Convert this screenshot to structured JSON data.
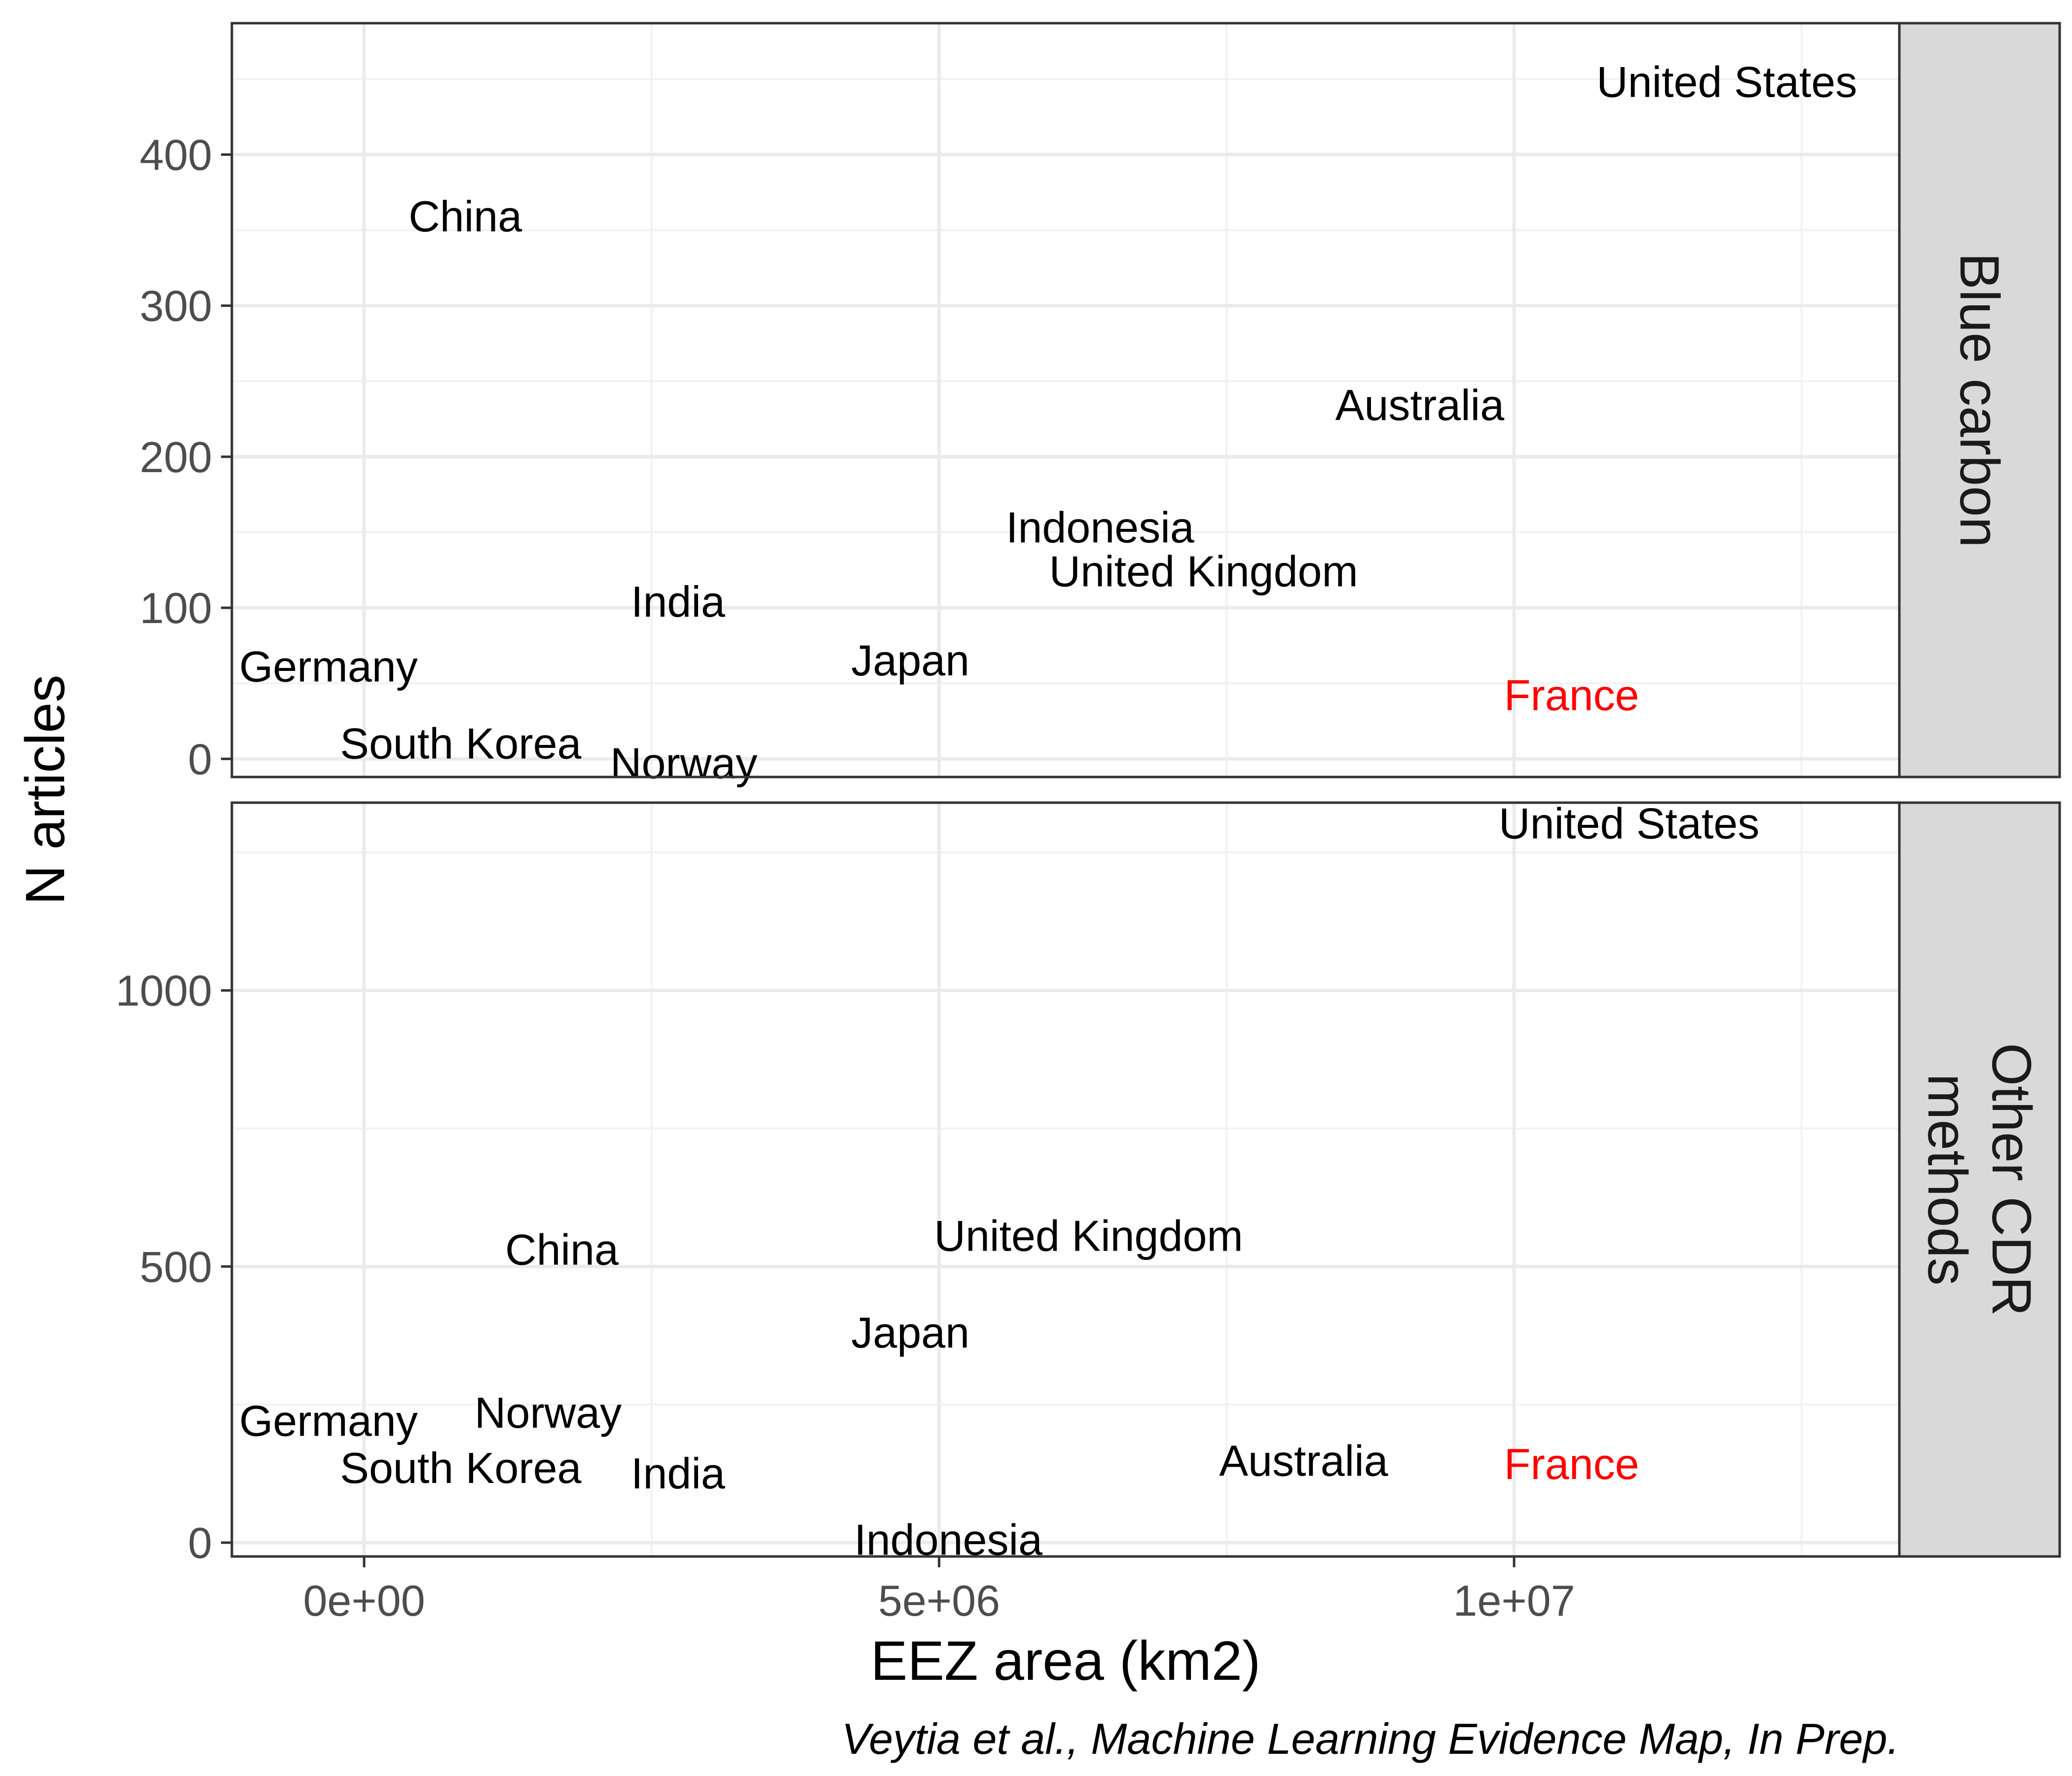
{
  "chart_data": {
    "type": "scatter",
    "xlabel": "EEZ area (km2)",
    "ylabel": "N articles",
    "caption": "Veytia et al., Machine Learning Evidence Map, In Prep.",
    "xlim": [
      -1150000,
      13350000
    ],
    "x_ticks": [
      {
        "value": 0,
        "label": "0e+00"
      },
      {
        "value": 5000000,
        "label": "5e+06"
      },
      {
        "value": 10000000,
        "label": "1e+07"
      }
    ],
    "x_minor_ticks": [
      2500000,
      7500000,
      12500000
    ],
    "grid": true,
    "highlight_color": "#ff0000",
    "label_color": "#000000",
    "facets": [
      {
        "strip": [
          "Blue carbon"
        ],
        "ylim": [
          -12,
          487
        ],
        "y_ticks": [
          {
            "value": 0,
            "label": "0"
          },
          {
            "value": 100,
            "label": "100"
          },
          {
            "value": 200,
            "label": "200"
          },
          {
            "value": 300,
            "label": "300"
          },
          {
            "value": 400,
            "label": "400"
          }
        ],
        "y_minor_ticks": [
          50,
          150,
          250,
          350,
          450
        ],
        "points": [
          {
            "label": "United States",
            "x": 11850000,
            "y": 448
          },
          {
            "label": "China",
            "x": 880000,
            "y": 359
          },
          {
            "label": "Australia",
            "x": 9180000,
            "y": 234
          },
          {
            "label": "Indonesia",
            "x": 6400000,
            "y": 153
          },
          {
            "label": "United Kingdom",
            "x": 7300000,
            "y": 124
          },
          {
            "label": "India",
            "x": 2730000,
            "y": 104
          },
          {
            "label": "Germany",
            "x": -310000,
            "y": 61
          },
          {
            "label": "Japan",
            "x": 4750000,
            "y": 65
          },
          {
            "label": "France",
            "x": 10500000,
            "y": 42,
            "highlight": true
          },
          {
            "label": "South Korea",
            "x": 840000,
            "y": 10
          },
          {
            "label": "Norway",
            "x": 2780000,
            "y": -3
          }
        ]
      },
      {
        "strip": [
          "Other CDR",
          "methods"
        ],
        "ylim": [
          -25,
          1340
        ],
        "y_ticks": [
          {
            "value": 0,
            "label": "0"
          },
          {
            "value": 500,
            "label": "500"
          },
          {
            "value": 1000,
            "label": "1000"
          }
        ],
        "y_minor_ticks": [
          250,
          750,
          1250
        ],
        "points": [
          {
            "label": "United States",
            "x": 11000000,
            "y": 1302
          },
          {
            "label": "United Kingdom",
            "x": 6300000,
            "y": 555
          },
          {
            "label": "China",
            "x": 1720000,
            "y": 530
          },
          {
            "label": "Japan",
            "x": 4750000,
            "y": 380
          },
          {
            "label": "Germany",
            "x": -310000,
            "y": 220
          },
          {
            "label": "Norway",
            "x": 1600000,
            "y": 235
          },
          {
            "label": "South Korea",
            "x": 840000,
            "y": 135
          },
          {
            "label": "India",
            "x": 2730000,
            "y": 125
          },
          {
            "label": "Australia",
            "x": 8170000,
            "y": 148
          },
          {
            "label": "France",
            "x": 10500000,
            "y": 142,
            "highlight": true
          },
          {
            "label": "Indonesia",
            "x": 5080000,
            "y": 5
          }
        ]
      }
    ]
  }
}
